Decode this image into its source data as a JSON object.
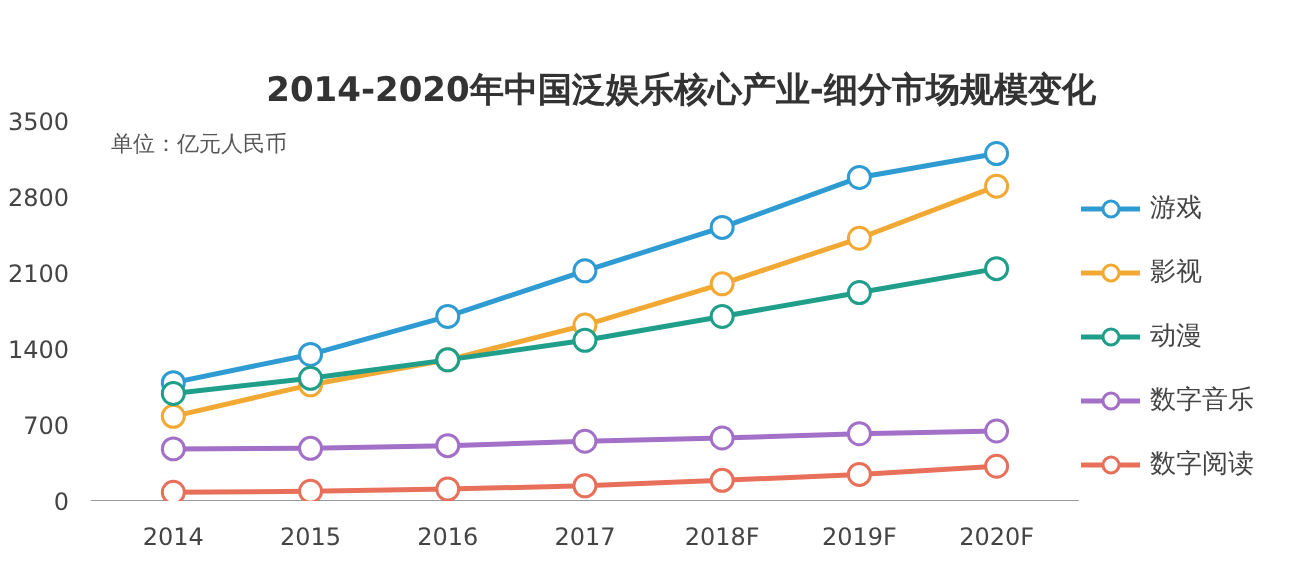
{
  "chart_data": {
    "type": "line",
    "title": "2014-2020年中国泛娱乐核心产业-细分市场规模变化",
    "annotations": [
      "单位：亿元人民币"
    ],
    "categories": [
      "2014",
      "2015",
      "2016",
      "2017",
      "2018F",
      "2019F",
      "2020F"
    ],
    "series": [
      {
        "name": "游戏",
        "color": "#2e9bd3",
        "values": [
          1090,
          1350,
          1700,
          2120,
          2520,
          2980,
          3200
        ]
      },
      {
        "name": "影视",
        "color": "#f2a933",
        "values": [
          780,
          1070,
          1300,
          1620,
          2000,
          2420,
          2900
        ]
      },
      {
        "name": "动漫",
        "color": "#1f9e8a",
        "values": [
          990,
          1130,
          1300,
          1480,
          1700,
          1920,
          2140
        ]
      },
      {
        "name": "数字音乐",
        "color": "#a370c8",
        "values": [
          480,
          485,
          510,
          550,
          580,
          620,
          645
        ]
      },
      {
        "name": "数字阅读",
        "color": "#e8705b",
        "values": [
          80,
          90,
          110,
          140,
          190,
          245,
          320
        ]
      }
    ],
    "ylim": [
      0,
      3500
    ],
    "yticks": [
      0,
      700,
      1400,
      2100,
      2800,
      3500
    ],
    "grid": false,
    "legend": "right",
    "marker": "circle",
    "line_style": "solid"
  }
}
